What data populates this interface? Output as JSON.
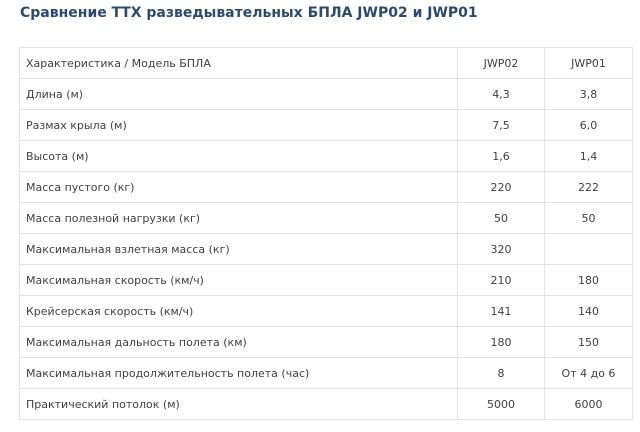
{
  "title": "Сравнение ТТХ разведывательных БПЛА JWP02 и JWP01",
  "table": {
    "header": [
      "Характеристика / Модель БПЛА",
      "JWP02",
      "JWP01"
    ],
    "rows": [
      [
        "Длина (м)",
        "4,3",
        "3,8"
      ],
      [
        "Размах крыла (м)",
        "7,5",
        "6,0"
      ],
      [
        "Высота (м)",
        "1,6",
        "1,4"
      ],
      [
        "Масса пустого (кг)",
        "220",
        "222"
      ],
      [
        "Масса полезной нагрузки (кг)",
        "50",
        "50"
      ],
      [
        "Максимальная взлетная масса (кг)",
        "320",
        ""
      ],
      [
        "Максимальная скорость (км/ч)",
        "210",
        "180"
      ],
      [
        "Крейсерская скорость (км/ч)",
        "141",
        "140"
      ],
      [
        "Максимальная дальность полета (км)",
        "180",
        "150"
      ],
      [
        "Максимальная продолжительность полета (час)",
        "8",
        "От 4 до 6"
      ],
      [
        "Практический потолок (м)",
        "5000",
        "6000"
      ]
    ]
  }
}
